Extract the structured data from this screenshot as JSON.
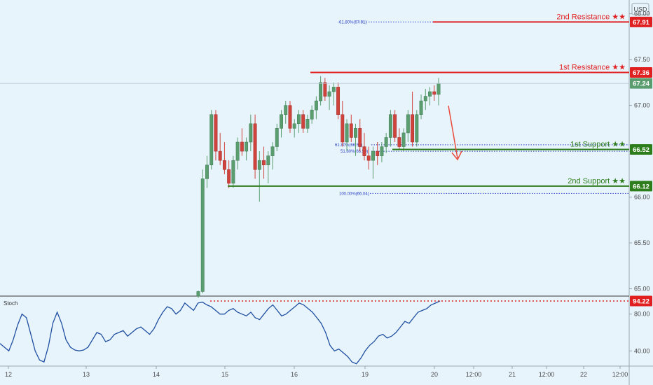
{
  "currency": "USD",
  "chart_data": [
    {
      "type": "candlestick",
      "title": "",
      "ylim": [
        64.92,
        68.15
      ],
      "y_ticks": [
        "68.00",
        "67.50",
        "67.00",
        "66.50",
        "66.00",
        "65.50",
        "65.00"
      ],
      "x_ticks": [
        "12",
        "13",
        "14",
        "15",
        "16",
        "19",
        "20",
        "12:00",
        "21",
        "12:00",
        "22",
        "12:00"
      ],
      "ohlc": [
        [
          64.92,
          64.98,
          64.9,
          64.97
        ],
        [
          64.97,
          66.3,
          64.95,
          66.2
        ],
        [
          66.2,
          66.45,
          66.1,
          66.35
        ],
        [
          66.35,
          66.95,
          66.3,
          66.9
        ],
        [
          66.9,
          66.95,
          66.4,
          66.5
        ],
        [
          66.5,
          66.7,
          66.35,
          66.4
        ],
        [
          66.4,
          66.6,
          66.25,
          66.3
        ],
        [
          66.3,
          66.4,
          66.1,
          66.15
        ],
        [
          66.15,
          66.45,
          66.1,
          66.4
        ],
        [
          66.4,
          66.65,
          66.3,
          66.6
        ],
        [
          66.6,
          66.75,
          66.45,
          66.5
        ],
        [
          66.5,
          66.65,
          66.4,
          66.6
        ],
        [
          66.6,
          66.9,
          66.5,
          66.8
        ],
        [
          66.8,
          66.9,
          66.2,
          66.3
        ],
        [
          66.3,
          66.5,
          65.95,
          66.4
        ],
        [
          66.4,
          66.55,
          66.2,
          66.35
        ],
        [
          66.35,
          66.5,
          66.15,
          66.45
        ],
        [
          66.45,
          66.6,
          66.3,
          66.55
        ],
        [
          66.55,
          66.8,
          66.5,
          66.75
        ],
        [
          66.75,
          66.95,
          66.65,
          66.9
        ],
        [
          66.9,
          67.05,
          66.8,
          67.0
        ],
        [
          67.0,
          67.05,
          66.7,
          66.75
        ],
        [
          66.75,
          66.85,
          66.65,
          66.8
        ],
        [
          66.8,
          66.95,
          66.7,
          66.9
        ],
        [
          66.9,
          66.95,
          66.7,
          66.75
        ],
        [
          66.75,
          66.9,
          66.7,
          66.85
        ],
        [
          66.85,
          67.0,
          66.8,
          66.95
        ],
        [
          66.95,
          67.1,
          66.85,
          67.05
        ],
        [
          67.05,
          67.32,
          67.0,
          67.25
        ],
        [
          67.25,
          67.3,
          67.05,
          67.1
        ],
        [
          67.1,
          67.22,
          66.95,
          67.15
        ],
        [
          67.15,
          67.25,
          67.0,
          67.2
        ],
        [
          67.2,
          67.25,
          66.85,
          66.9
        ],
        [
          66.9,
          67.05,
          66.55,
          66.6
        ],
        [
          66.6,
          66.85,
          66.5,
          66.8
        ],
        [
          66.8,
          66.9,
          66.6,
          66.65
        ],
        [
          66.65,
          66.8,
          66.45,
          66.75
        ],
        [
          66.75,
          66.85,
          66.5,
          66.55
        ],
        [
          66.55,
          66.7,
          66.4,
          66.45
        ],
        [
          66.45,
          66.55,
          66.3,
          66.4
        ],
        [
          66.4,
          66.55,
          66.2,
          66.5
        ],
        [
          66.5,
          66.6,
          66.35,
          66.45
        ],
        [
          66.45,
          66.6,
          66.38,
          66.55
        ],
        [
          66.55,
          66.7,
          66.48,
          66.65
        ],
        [
          66.65,
          66.95,
          66.55,
          66.9
        ],
        [
          66.9,
          66.95,
          66.6,
          66.65
        ],
        [
          66.65,
          66.75,
          66.52,
          66.55
        ],
        [
          66.55,
          66.75,
          66.5,
          66.7
        ],
        [
          66.7,
          66.95,
          66.6,
          66.9
        ],
        [
          66.9,
          67.15,
          66.55,
          66.6
        ],
        [
          66.6,
          66.95,
          66.55,
          66.9
        ],
        [
          66.9,
          67.12,
          66.85,
          67.05
        ],
        [
          67.05,
          67.18,
          66.95,
          67.1
        ],
        [
          67.1,
          67.2,
          67.0,
          67.15
        ],
        [
          67.15,
          67.22,
          67.05,
          67.12
        ],
        [
          67.12,
          67.3,
          67.0,
          67.24
        ]
      ],
      "levels": [
        {
          "label": "2nd Resistance ★★",
          "value": 67.91,
          "badge": "67.91",
          "color": "#e02020"
        },
        {
          "label": "1st Resistance ★★",
          "value": 67.36,
          "badge": "67.36",
          "color": "#e02020"
        },
        {
          "label": "1st Support ★★",
          "value": 66.52,
          "badge": "66.52",
          "color": "#2e7d1c"
        },
        {
          "label": "2nd Support ★★",
          "value": 66.12,
          "badge": "66.12",
          "color": "#2e7d1c"
        }
      ],
      "current_price": {
        "value": 67.24,
        "badge": "67.24",
        "color": "#5a9e6f"
      },
      "fib_labels": [
        {
          "text": "-61.80%(67.91)",
          "value": 67.91
        },
        {
          "text": "61.80%(66.57)",
          "value": 66.57
        },
        {
          "text": "51.80%(66.50)",
          "value": 66.5
        },
        {
          "text": "100.00%(66.04)",
          "value": 66.04
        }
      ],
      "bull_color": "#5a9e6f",
      "bear_color": "#d0433c"
    },
    {
      "type": "line",
      "title": "Stoch",
      "y_ticks": [
        "80.00",
        "40.00"
      ],
      "ylim": [
        25,
        98
      ],
      "series": [
        {
          "values": [
            48,
            44,
            40,
            52,
            68,
            80,
            76,
            58,
            40,
            30,
            28,
            45,
            70,
            82,
            70,
            52,
            44,
            41,
            40,
            41,
            44,
            52,
            60,
            58,
            50,
            52,
            58,
            60,
            62,
            56,
            60,
            64,
            66,
            62,
            58,
            64,
            74,
            82,
            88,
            86,
            80,
            84,
            92,
            88,
            84,
            92,
            93,
            90,
            88,
            84,
            80,
            80,
            84,
            86,
            82,
            80,
            78,
            82,
            76,
            74,
            80,
            86,
            90,
            84,
            78,
            80,
            84,
            88,
            92,
            90,
            86,
            82,
            76,
            70,
            60,
            46,
            40,
            42,
            38,
            34,
            28,
            26,
            32,
            40,
            46,
            50,
            56,
            58,
            54,
            56,
            60,
            66,
            72,
            70,
            76,
            82,
            84,
            86,
            90,
            92,
            94.22
          ],
          "color": "#1f4fa0"
        }
      ],
      "level": {
        "value": 94.22,
        "badge": "94.22",
        "color": "#e02020"
      }
    }
  ]
}
